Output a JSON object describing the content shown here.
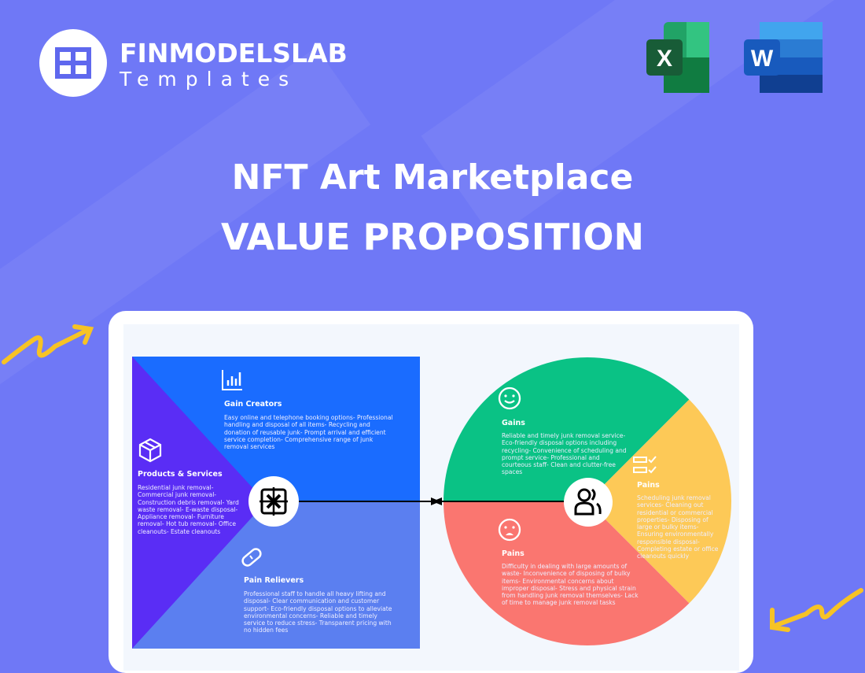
{
  "brand": {
    "name": "FINMODELSLAB",
    "subtitle": "Templates"
  },
  "apps": [
    {
      "name": "excel-icon",
      "letter": "X",
      "color": "#1f7244"
    },
    {
      "name": "word-icon",
      "letter": "W",
      "color": "#2b5bb8"
    }
  ],
  "title": {
    "line1": "NFT Art Marketplace",
    "line2": "VALUE PROPOSITION"
  },
  "left": {
    "gain_creators": {
      "title": "Gain Creators",
      "text": "Easy online and telephone booking options- Professional handling and disposal of all items- Recycling and donation of reusable junk- Prompt arrival and efficient service completion- Comprehensive range of junk removal services"
    },
    "products": {
      "title": "Products & Services",
      "text": "Residential junk removal- Commercial junk removal- Construction debris removal- Yard waste removal- E-waste disposal- Appliance removal- Furniture removal- Hot tub removal- Office cleanouts- Estate cleanouts"
    },
    "pain_relievers": {
      "title": "Pain Relievers",
      "text": "Professional staff to handle all heavy lifting and disposal- Clear communication and customer support- Eco-friendly disposal options to alleviate environmental concerns- Reliable and timely service to reduce stress- Transparent pricing with no hidden fees"
    }
  },
  "right": {
    "gains": {
      "title": "Gains",
      "text": "Reliable and timely junk removal service- Eco-friendly disposal options including recycling- Convenience of scheduling and prompt service- Professional and courteous staff- Clean and clutter-free spaces"
    },
    "jobs": {
      "title": "Pains",
      "text": "Scheduling junk removal services- Cleaning out residential or commercial properties- Disposing of large or bulky items- Ensuring environmentally responsible disposal- Completing estate or office cleanouts quickly"
    },
    "pains": {
      "title": "Pains",
      "text": "Difficulty in dealing with large amounts of waste- Inconvenience of disposing of bulky items- Environmental concerns about improper disposal- Stress and physical strain from handling junk removal themselves- Lack of time to manage junk removal tasks"
    }
  },
  "colors": {
    "background": "#6f78f6",
    "gain_creators": "#1a6cff",
    "pain_relievers": "#5b7ff0",
    "products": "#5a2df5",
    "gains": "#0ac285",
    "jobs": "#fdc957",
    "pains": "#fa7670",
    "arrow": "#f7c325"
  }
}
